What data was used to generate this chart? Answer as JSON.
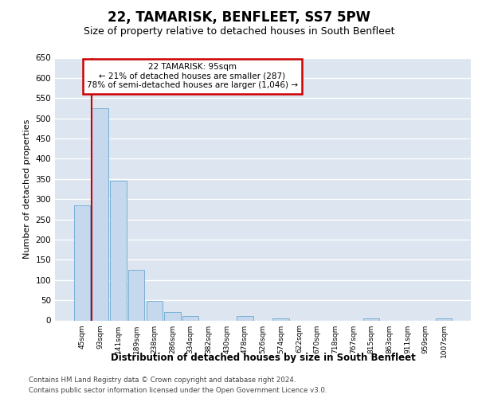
{
  "title": "22, TAMARISK, BENFLEET, SS7 5PW",
  "subtitle": "Size of property relative to detached houses in South Benfleet",
  "xlabel": "Distribution of detached houses by size in South Benfleet",
  "ylabel": "Number of detached properties",
  "categories": [
    "45sqm",
    "93sqm",
    "141sqm",
    "189sqm",
    "238sqm",
    "286sqm",
    "334sqm",
    "382sqm",
    "430sqm",
    "478sqm",
    "526sqm",
    "574sqm",
    "622sqm",
    "670sqm",
    "718sqm",
    "767sqm",
    "815sqm",
    "863sqm",
    "911sqm",
    "959sqm",
    "1007sqm"
  ],
  "values": [
    285,
    525,
    345,
    125,
    48,
    20,
    10,
    0,
    0,
    10,
    0,
    5,
    0,
    0,
    0,
    0,
    5,
    0,
    0,
    0,
    5
  ],
  "bar_color": "#c5d8ed",
  "bar_edge_color": "#7aafd4",
  "marker_color": "#cc0000",
  "annotation_line1": "22 TAMARISK: 95sqm",
  "annotation_line2": "← 21% of detached houses are smaller (287)",
  "annotation_line3": "78% of semi-detached houses are larger (1,046) →",
  "annotation_box_color": "white",
  "annotation_box_edge_color": "#cc0000",
  "ylim": [
    0,
    650
  ],
  "yticks": [
    0,
    50,
    100,
    150,
    200,
    250,
    300,
    350,
    400,
    450,
    500,
    550,
    600,
    650
  ],
  "footer1": "Contains HM Land Registry data © Crown copyright and database right 2024.",
  "footer2": "Contains public sector information licensed under the Open Government Licence v3.0.",
  "bg_color": "#dde6f0",
  "fig_bg_color": "#ffffff",
  "title_fontsize": 12,
  "subtitle_fontsize": 9
}
